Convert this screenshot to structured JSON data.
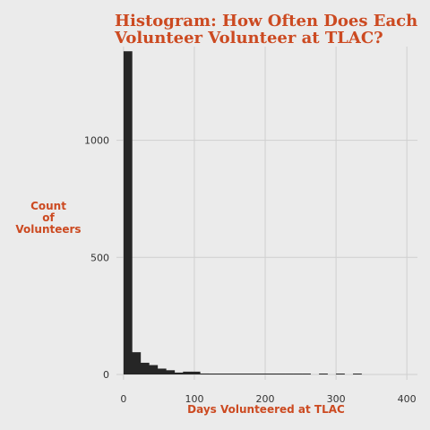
{
  "chart_data": {
    "type": "bar",
    "title_lines": [
      "Histogram: How Often Does Each",
      "Volunteer Volunteer at TLAC?"
    ],
    "xlabel": "Days Volunteered at TLAC",
    "ylabel_lines": [
      "Count",
      "of",
      "Volunteers"
    ],
    "xlim": [
      -10,
      415
    ],
    "ylim": [
      0,
      1400
    ],
    "x_ticks": [
      0,
      100,
      200,
      300,
      400
    ],
    "y_ticks": [
      0,
      500,
      1000
    ],
    "bin_width": 12,
    "bins": [
      {
        "start": 0,
        "count": 1380
      },
      {
        "start": 12,
        "count": 95
      },
      {
        "start": 24,
        "count": 50
      },
      {
        "start": 36,
        "count": 40
      },
      {
        "start": 48,
        "count": 25
      },
      {
        "start": 60,
        "count": 18
      },
      {
        "start": 72,
        "count": 8
      },
      {
        "start": 84,
        "count": 12
      },
      {
        "start": 96,
        "count": 12
      },
      {
        "start": 108,
        "count": 4
      },
      {
        "start": 120,
        "count": 3
      },
      {
        "start": 132,
        "count": 2
      },
      {
        "start": 144,
        "count": 2
      },
      {
        "start": 156,
        "count": 2
      },
      {
        "start": 168,
        "count": 2
      },
      {
        "start": 180,
        "count": 2
      },
      {
        "start": 192,
        "count": 2
      },
      {
        "start": 204,
        "count": 1
      },
      {
        "start": 216,
        "count": 1
      },
      {
        "start": 228,
        "count": 1
      },
      {
        "start": 240,
        "count": 1
      },
      {
        "start": 252,
        "count": 1
      },
      {
        "start": 276,
        "count": 1
      },
      {
        "start": 300,
        "count": 1
      },
      {
        "start": 324,
        "count": 1
      }
    ],
    "bar_color": "#262626",
    "grid": true,
    "background_color": "#ebebeb",
    "grid_color": "#cfcfcf",
    "title_color": "#cc4a21"
  }
}
